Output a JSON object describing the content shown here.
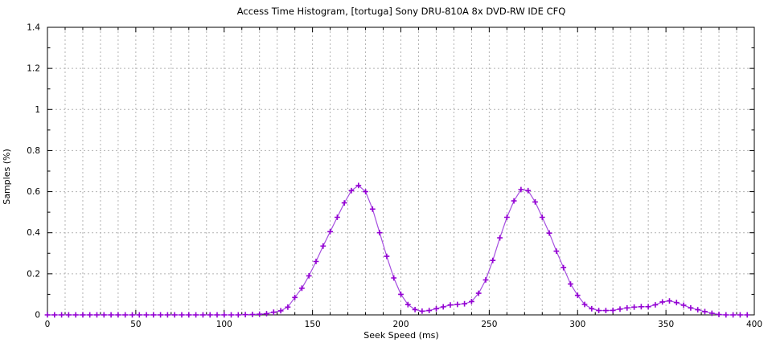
{
  "title": "Access Time Histogram, [tortuga] Sony DRU-810A 8x DVD-RW IDE CFQ",
  "colors": {
    "background": "#ffffff",
    "border": "#000000",
    "grid": "#b3b3b3",
    "series_marker": "#9400d3",
    "series_line": "#a64fe0"
  },
  "chart_data": {
    "type": "line",
    "title": "Access Time Histogram, [tortuga] Sony DRU-810A 8x DVD-RW IDE CFQ",
    "xlabel": "Seek Speed (ms)",
    "ylabel": "Samples (%)",
    "xlim": [
      0,
      400
    ],
    "ylim": [
      0,
      1.4
    ],
    "xtick_labels": [
      "0",
      "50",
      "100",
      "150",
      "200",
      "250",
      "300",
      "350",
      "400"
    ],
    "xtick_values": [
      0,
      50,
      100,
      150,
      200,
      250,
      300,
      350,
      400
    ],
    "ytick_labels": [
      "0",
      "0.2",
      "0.4",
      "0.6",
      "0.8",
      "1",
      "1.2",
      "1.4"
    ],
    "ytick_values": [
      0,
      0.2,
      0.4,
      0.6,
      0.8,
      1,
      1.2,
      1.4
    ],
    "x_minor_step": 10,
    "y_minor_step": 0.1,
    "grid": "dashed, vertical every 10 ms, horizontal every 0.2 %",
    "legend": "none",
    "marker": "plus",
    "series": [
      {
        "name": "samples",
        "x": [
          0,
          4,
          8,
          12,
          16,
          20,
          24,
          28,
          32,
          36,
          40,
          44,
          48,
          52,
          56,
          60,
          64,
          68,
          72,
          76,
          80,
          84,
          88,
          92,
          96,
          100,
          104,
          108,
          112,
          116,
          120,
          124,
          128,
          132,
          136,
          140,
          144,
          148,
          152,
          156,
          160,
          164,
          168,
          172,
          176,
          180,
          184,
          188,
          192,
          196,
          200,
          204,
          208,
          212,
          216,
          220,
          224,
          228,
          232,
          236,
          240,
          244,
          248,
          252,
          256,
          260,
          264,
          268,
          272,
          276,
          280,
          284,
          288,
          292,
          296,
          300,
          304,
          308,
          312,
          316,
          320,
          324,
          328,
          332,
          336,
          340,
          344,
          348,
          352,
          356,
          360,
          364,
          368,
          372,
          376,
          380,
          384,
          388,
          392,
          396
        ],
        "y": [
          0,
          0,
          0,
          0,
          0,
          0,
          0,
          0,
          0,
          0,
          0,
          0,
          0,
          0,
          0,
          0,
          0,
          0,
          0,
          0,
          0,
          0,
          0,
          0,
          0,
          0,
          0,
          0,
          0.001,
          0.002,
          0.003,
          0.006,
          0.013,
          0.02,
          0.038,
          0.085,
          0.13,
          0.19,
          0.26,
          0.335,
          0.405,
          0.475,
          0.545,
          0.605,
          0.63,
          0.6,
          0.515,
          0.4,
          0.285,
          0.18,
          0.1,
          0.05,
          0.026,
          0.018,
          0.021,
          0.03,
          0.039,
          0.048,
          0.051,
          0.054,
          0.065,
          0.105,
          0.17,
          0.265,
          0.375,
          0.475,
          0.555,
          0.61,
          0.605,
          0.55,
          0.475,
          0.398,
          0.31,
          0.23,
          0.15,
          0.095,
          0.051,
          0.03,
          0.021,
          0.021,
          0.022,
          0.028,
          0.034,
          0.038,
          0.04,
          0.04,
          0.049,
          0.063,
          0.068,
          0.06,
          0.047,
          0.034,
          0.025,
          0.016,
          0.008,
          0.002,
          0,
          0,
          0,
          0
        ]
      }
    ]
  }
}
